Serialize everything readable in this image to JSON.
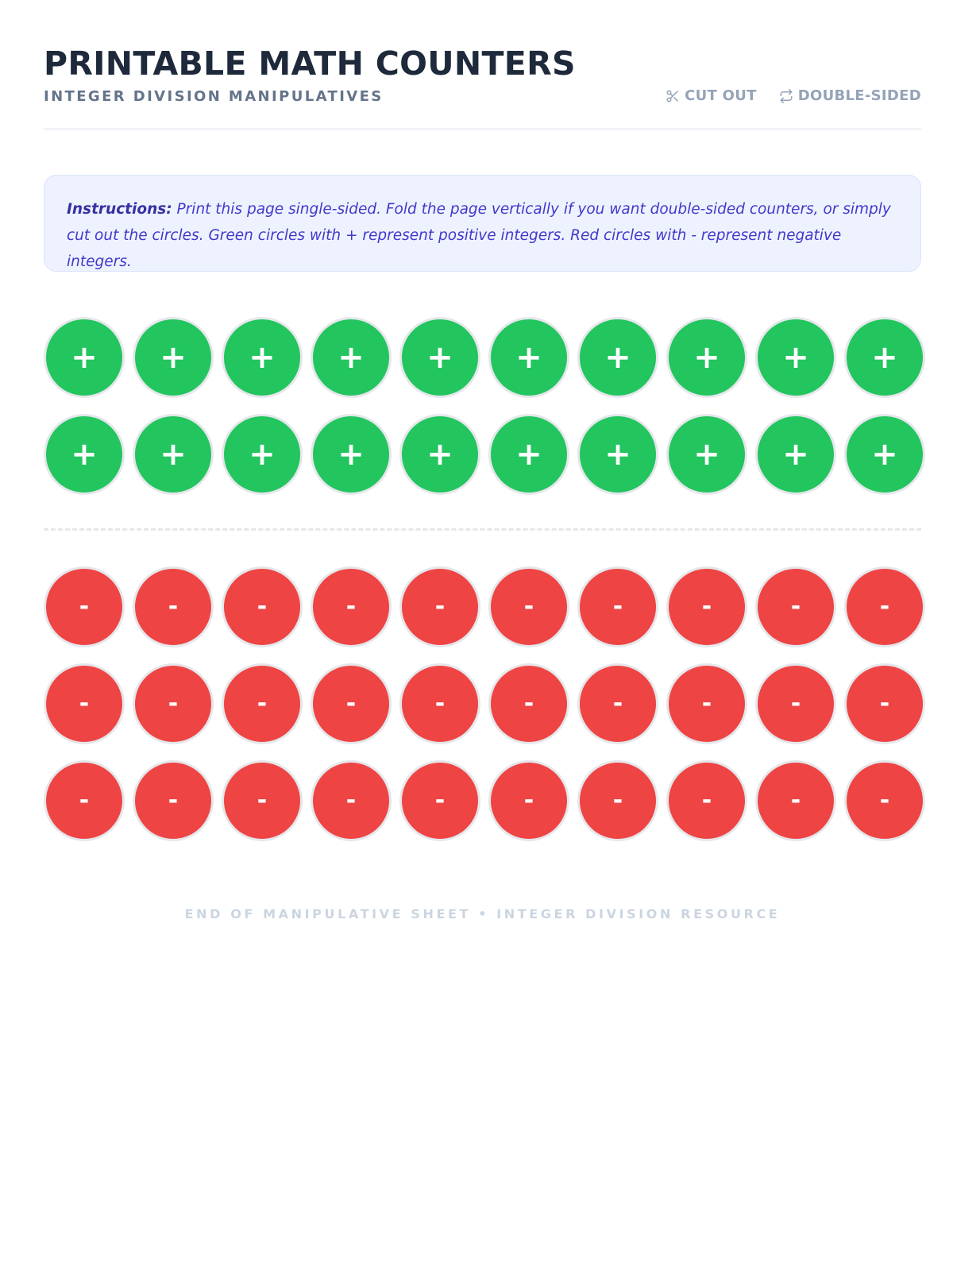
{
  "header": {
    "title": "PRINTABLE MATH COUNTERS",
    "subtitle": "INTEGER DIVISION MANIPULATIVES",
    "tags": [
      {
        "label": "CUT OUT",
        "icon": "scissors-icon"
      },
      {
        "label": "DOUBLE-SIDED",
        "icon": "repeat-icon"
      }
    ]
  },
  "instructions": {
    "label": "Instructions:",
    "text": "Print this page single-sided. Fold the page vertically if you want double-sided counters, or simply cut out the circles. Green circles with + represent positive integers. Red circles with - represent negative integers."
  },
  "positive": {
    "symbol": "+",
    "color": "#22c55e",
    "rows": 2,
    "per_row": 10
  },
  "negative": {
    "symbol": "-",
    "color": "#ef4444",
    "rows": 3,
    "per_row": 10
  },
  "footer": {
    "text": "END OF MANIPULATIVE SHEET • INTEGER DIVISION RESOURCE"
  }
}
